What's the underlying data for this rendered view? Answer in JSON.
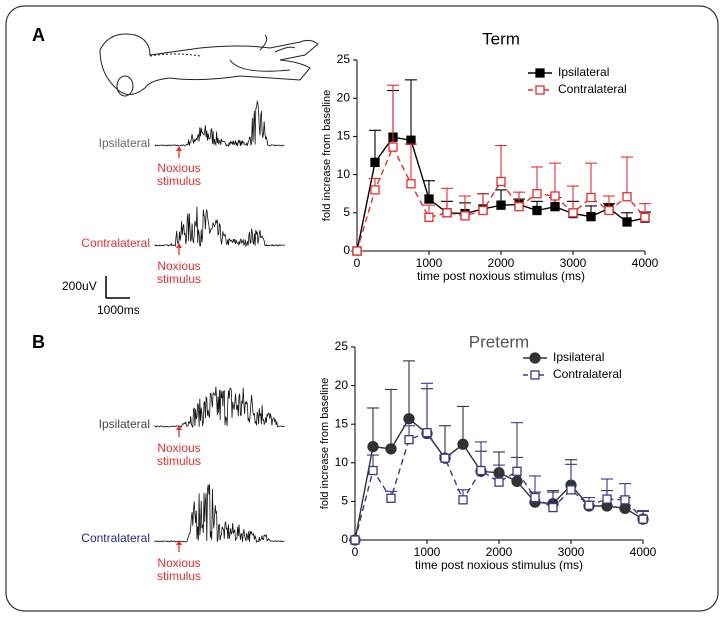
{
  "figure": {
    "panel_labels": [
      "A",
      "B"
    ],
    "trace_labels": [
      "Ipsilateral",
      "Contralateral",
      "Ipsilateral",
      "Contralateral"
    ],
    "stimulus_labels": [
      "Noxious stimulus",
      "Noxious stimulus",
      "Noxious stimulus",
      "Noxious stimulus"
    ],
    "scale_amplitude": "200uV",
    "scale_time": "1000ms"
  },
  "chart_data": [
    {
      "type": "line",
      "title": "Term",
      "title_color": "#000",
      "x_label": "time post noxious stimulus (ms)",
      "y_label": "fold increase from baseline",
      "x": [
        0,
        250,
        500,
        750,
        1000,
        1250,
        1500,
        1750,
        2000,
        2250,
        2500,
        2750,
        3000,
        3250,
        3500,
        3750,
        4000
      ],
      "xlim": [
        0,
        4000
      ],
      "xticks": [
        0,
        1000,
        2000,
        3000,
        4000
      ],
      "ylim": [
        0,
        25
      ],
      "yticks": [
        0,
        5,
        10,
        15,
        20,
        25
      ],
      "series": [
        {
          "name": "Ipsilateral",
          "color": "#000000",
          "marker": "square",
          "filled": true,
          "dashed": false,
          "values": [
            0,
            11.6,
            14.9,
            14.5,
            6.8,
            5.0,
            4.9,
            5.5,
            6.0,
            6.1,
            5.3,
            5.8,
            4.9,
            4.5,
            5.6,
            3.8,
            4.3
          ],
          "errors": [
            0,
            4.2,
            6.1,
            7.9,
            2.4,
            1.5,
            1.4,
            2.0,
            2.0,
            0.7,
            1.2,
            1.2,
            1.6,
            1.4,
            0.6,
            1.2,
            0.8
          ]
        },
        {
          "name": "Contralateral",
          "color": "#e03030",
          "marker": "square",
          "filled": false,
          "dashed": true,
          "values": [
            0,
            8.0,
            13.6,
            8.8,
            4.4,
            5.0,
            4.6,
            5.3,
            9.1,
            5.8,
            7.5,
            7.2,
            5.0,
            7.0,
            5.3,
            7.1,
            4.4
          ],
          "errors": [
            0,
            1.5,
            8.1,
            5.2,
            1.6,
            3.2,
            2.6,
            2.2,
            4.7,
            1.9,
            3.5,
            4.3,
            3.5,
            4.5,
            1.9,
            5.2,
            1.8
          ]
        }
      ]
    },
    {
      "type": "line",
      "title": "Preterm",
      "title_color": "#555",
      "x_label": "time post noxious stimulus (ms)",
      "y_label": "fold increase from baseline",
      "x": [
        0,
        250,
        500,
        750,
        1000,
        1250,
        1500,
        1750,
        2000,
        2250,
        2500,
        2750,
        3000,
        3250,
        3500,
        3750,
        4000
      ],
      "xlim": [
        0,
        4000
      ],
      "xticks": [
        0,
        1000,
        2000,
        3000,
        4000
      ],
      "ylim": [
        0,
        25
      ],
      "yticks": [
        0,
        5,
        10,
        15,
        20,
        25
      ],
      "series": [
        {
          "name": "Ipsilateral",
          "color": "#333333",
          "marker": "circle",
          "filled": true,
          "dashed": false,
          "values": [
            0,
            12.1,
            11.8,
            15.7,
            13.8,
            10.6,
            12.4,
            8.9,
            8.7,
            7.6,
            4.9,
            4.7,
            7.1,
            4.4,
            4.4,
            4.1,
            2.7
          ],
          "errors": [
            0,
            5.0,
            7.7,
            7.5,
            5.8,
            4.2,
            4.9,
            2.6,
            2.7,
            3.1,
            1.3,
            1.7,
            3.3,
            0.6,
            2.0,
            1.4,
            1.1
          ]
        },
        {
          "name": "Contralateral",
          "color": "#3a3a8a",
          "marker": "square",
          "filled": false,
          "dashed": true,
          "values": [
            0,
            9.0,
            5.4,
            13.0,
            13.9,
            10.6,
            5.2,
            9.0,
            7.5,
            8.9,
            5.5,
            4.2,
            6.5,
            4.5,
            5.3,
            5.2,
            2.7
          ],
          "errors": [
            0,
            2.0,
            0.9,
            1.8,
            6.4,
            0.4,
            1.3,
            3.7,
            2.2,
            6.3,
            2.8,
            2.0,
            3.3,
            1.0,
            2.6,
            2.1,
            1.0
          ]
        }
      ]
    }
  ]
}
